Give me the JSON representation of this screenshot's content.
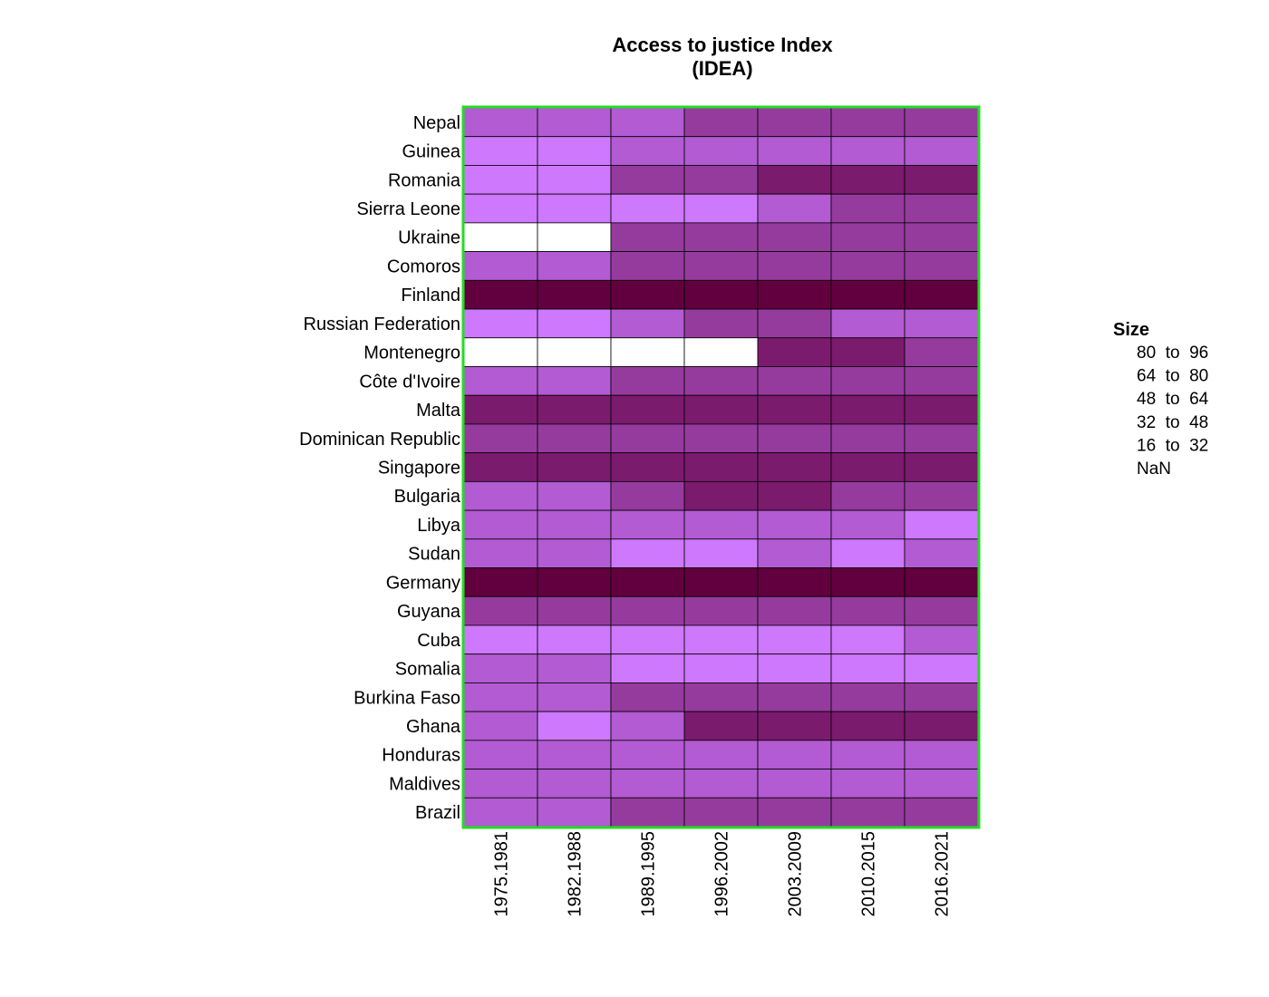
{
  "chart_data": {
    "type": "heatmap",
    "title": "Access to justice Index",
    "subtitle": "(IDEA)",
    "x_categories": [
      "1975.1981",
      "1982.1988",
      "1989.1995",
      "1996.2002",
      "2003.2009",
      "2010.2015",
      "2016.2021"
    ],
    "y_categories": [
      "Nepal",
      "Guinea",
      "Romania",
      "Sierra Leone",
      "Ukraine",
      "Comoros",
      "Finland",
      "Russian Federation",
      "Montenegro",
      "Côte d'Ivoire",
      "Malta",
      "Dominican Republic",
      "Singapore",
      "Bulgaria",
      "Libya",
      "Sudan",
      "Germany",
      "Guyana",
      "Cuba",
      "Somalia",
      "Burkina Faso",
      "Ghana",
      "Honduras",
      "Maldives",
      "Brazil"
    ],
    "bins": [
      {
        "label": "80  to  96",
        "min": 80,
        "max": 96,
        "color": "#62003f"
      },
      {
        "label": "64  to  80",
        "min": 64,
        "max": 80,
        "color": "#7b1b6e"
      },
      {
        "label": "48  to  64",
        "min": 48,
        "max": 64,
        "color": "#963b9e"
      },
      {
        "label": "32  to  48",
        "min": 32,
        "max": 48,
        "color": "#b25bd2"
      },
      {
        "label": "16  to  32",
        "min": 16,
        "max": 32,
        "color": "#ce78fd"
      },
      {
        "label": "NaN",
        "min": null,
        "max": null,
        "color": "#ffffff"
      }
    ],
    "values": [
      [
        40,
        40,
        40,
        56,
        56,
        56,
        56
      ],
      [
        24,
        24,
        40,
        40,
        40,
        40,
        40
      ],
      [
        24,
        24,
        56,
        56,
        72,
        72,
        72
      ],
      [
        24,
        24,
        24,
        24,
        40,
        56,
        56
      ],
      [
        null,
        null,
        56,
        56,
        56,
        56,
        56
      ],
      [
        40,
        40,
        56,
        56,
        56,
        56,
        56
      ],
      [
        88,
        88,
        88,
        88,
        88,
        88,
        88
      ],
      [
        24,
        24,
        40,
        56,
        56,
        40,
        40
      ],
      [
        null,
        null,
        null,
        null,
        72,
        72,
        56
      ],
      [
        40,
        40,
        56,
        56,
        56,
        56,
        56
      ],
      [
        72,
        72,
        72,
        72,
        72,
        72,
        72
      ],
      [
        56,
        56,
        56,
        56,
        56,
        56,
        56
      ],
      [
        72,
        72,
        72,
        72,
        72,
        72,
        72
      ],
      [
        40,
        40,
        56,
        72,
        72,
        56,
        56
      ],
      [
        40,
        40,
        40,
        40,
        40,
        40,
        24
      ],
      [
        40,
        40,
        24,
        24,
        40,
        24,
        40
      ],
      [
        88,
        88,
        88,
        88,
        88,
        88,
        88
      ],
      [
        56,
        56,
        56,
        56,
        56,
        56,
        56
      ],
      [
        24,
        24,
        24,
        24,
        24,
        24,
        40
      ],
      [
        40,
        40,
        24,
        24,
        24,
        24,
        24
      ],
      [
        40,
        40,
        56,
        56,
        56,
        56,
        56
      ],
      [
        40,
        24,
        40,
        72,
        72,
        72,
        72
      ],
      [
        40,
        40,
        40,
        40,
        40,
        40,
        40
      ],
      [
        40,
        40,
        40,
        40,
        40,
        40,
        40
      ],
      [
        40,
        40,
        56,
        56,
        56,
        56,
        56
      ]
    ],
    "legend": {
      "title": "Size",
      "position": "right"
    },
    "frame_color": "#22dd22",
    "grid": false
  }
}
